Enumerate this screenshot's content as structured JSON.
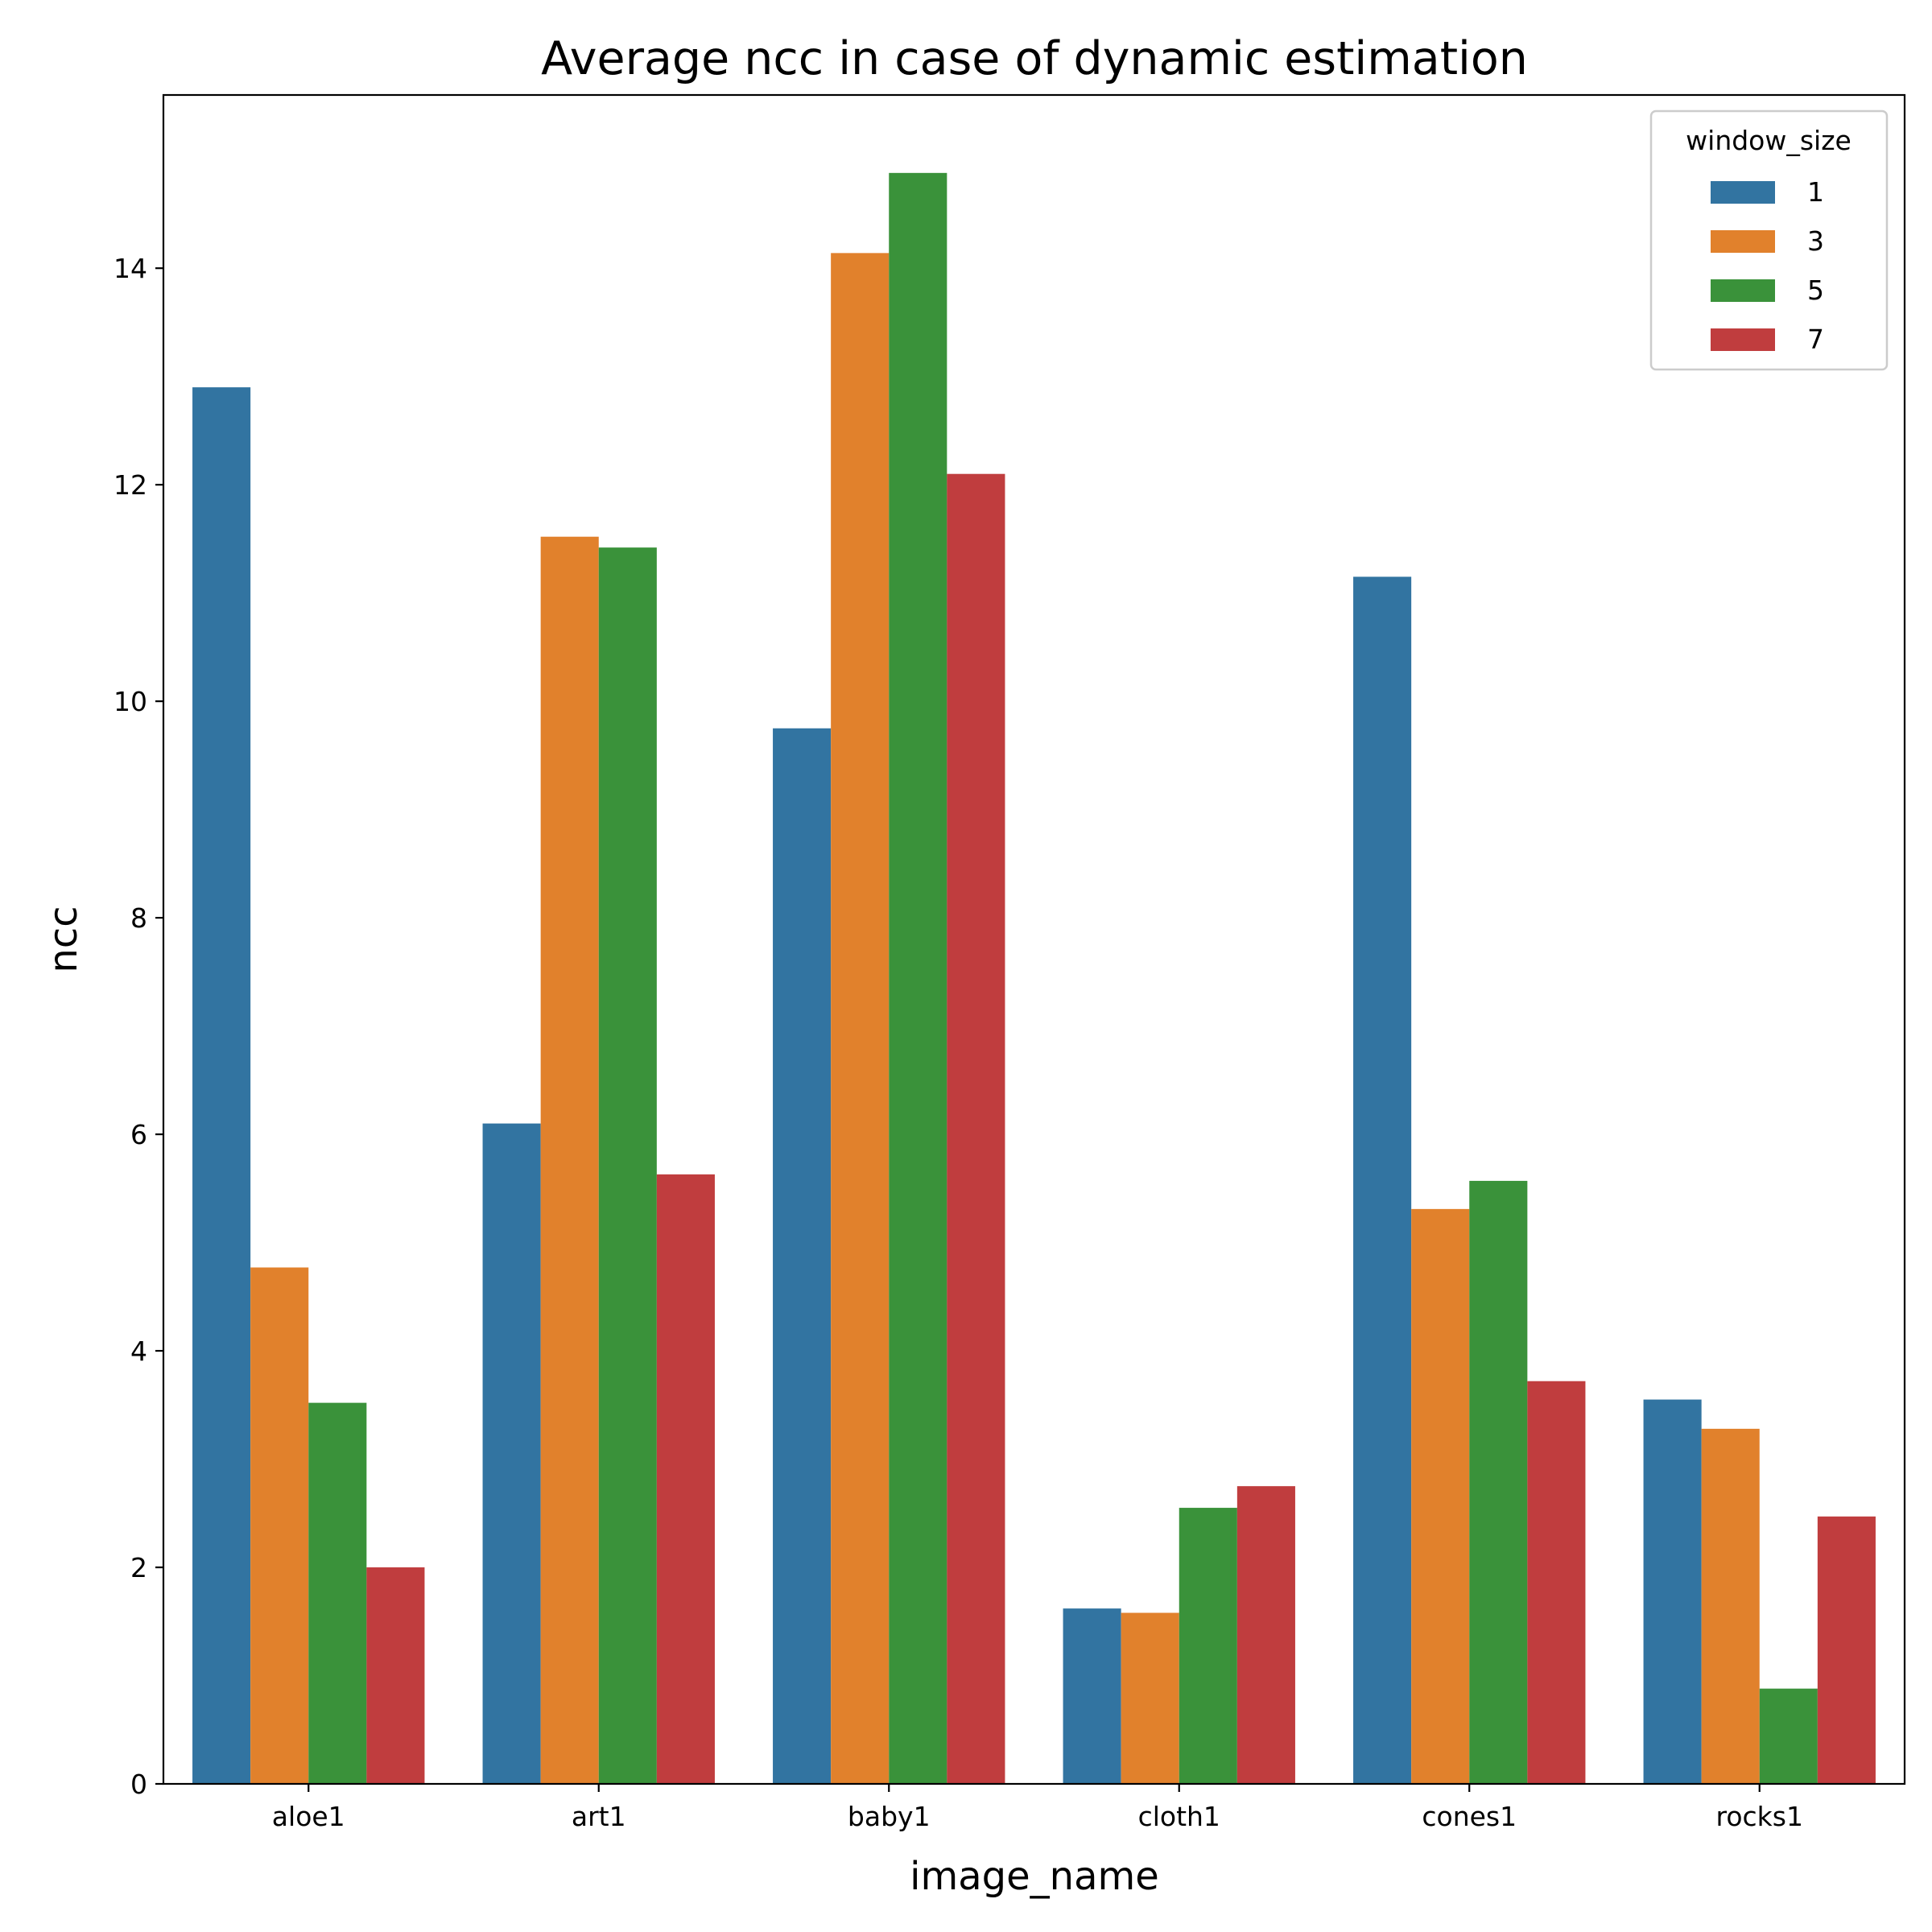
{
  "chart_data": {
    "type": "bar",
    "title": "Average ncc in case of dynamic estimation",
    "xlabel": "image_name",
    "ylabel": "ncc",
    "categories": [
      "aloe1",
      "art1",
      "baby1",
      "cloth1",
      "cones1",
      "rocks1"
    ],
    "ylim": [
      0,
      15.6
    ],
    "yticks": [
      "0",
      "2",
      "4",
      "6",
      "8",
      "10",
      "12",
      "14"
    ],
    "grid": false,
    "legend": {
      "title": "window_size",
      "placement": "top-right"
    },
    "series": [
      {
        "name": "1",
        "color": "#3274a1",
        "values": [
          12.9,
          6.1,
          9.75,
          1.62,
          11.15,
          3.55
        ]
      },
      {
        "name": "3",
        "color": "#e1812c",
        "values": [
          4.77,
          11.52,
          14.14,
          1.58,
          5.31,
          3.28
        ]
      },
      {
        "name": "5",
        "color": "#3a923a",
        "values": [
          3.52,
          11.42,
          14.88,
          2.55,
          5.57,
          0.88
        ]
      },
      {
        "name": "7",
        "color": "#c03d3e",
        "values": [
          2.0,
          5.63,
          12.1,
          2.75,
          3.72,
          2.47
        ]
      }
    ]
  }
}
